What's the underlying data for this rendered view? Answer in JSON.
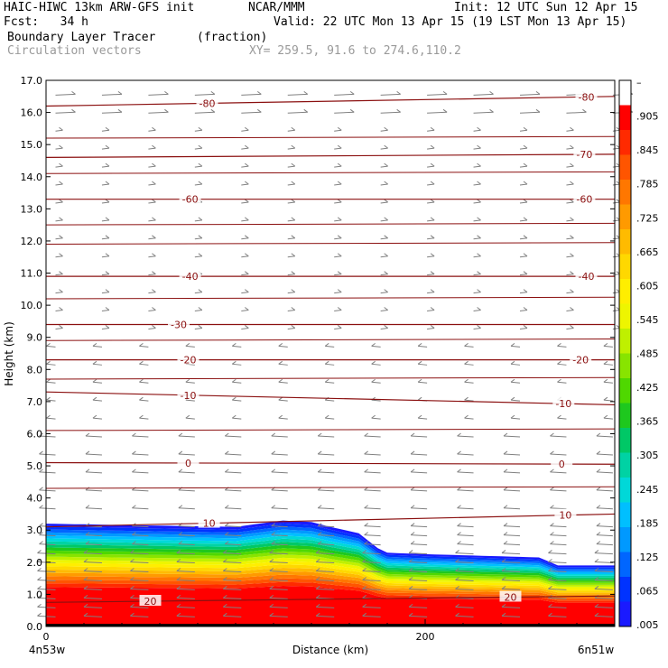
{
  "header": {
    "model": "HAIC-HIWC 13km ARW-GFS init",
    "org": "NCAR/MMM",
    "init": "Init: 12 UTC Sun 12 Apr 15",
    "fcst": "Fcst:   34 h",
    "valid": "Valid: 22 UTC Mon 13 Apr 15 (19 LST Mon 13 Apr 15)",
    "field": "Boundary Layer Tracer",
    "units": "(fraction)",
    "vectors": "Circulation vectors",
    "xy": "XY= 259.5, 91.6 to 274.6,110.2"
  },
  "colors": {
    "contour": "#8b1010",
    "vector": "#808080",
    "scale": [
      "#ffffff",
      "#ff0000",
      "#ff2a00",
      "#ff5500",
      "#ff7700",
      "#ff9a00",
      "#ffbb00",
      "#ffd800",
      "#ffee00",
      "#eef500",
      "#bff000",
      "#88e400",
      "#4fd800",
      "#1ec81e",
      "#00c866",
      "#00d2a4",
      "#00d8d8",
      "#00bfff",
      "#0099ff",
      "#0066ff",
      "#0033ff",
      "#1a1aff"
    ]
  },
  "chart_data": {
    "type": "cross-section",
    "title": "Boundary Layer Tracer",
    "xlabel": "Distance (km)",
    "ylabel": "Height (km)",
    "xlim": [
      0,
      300
    ],
    "ylim": [
      0,
      17
    ],
    "x_ticks": [
      {
        "value": 0,
        "label": "0"
      },
      {
        "value": 200,
        "label": "200"
      }
    ],
    "x_endpoints": {
      "left": "4n53w",
      "right": "6n51w"
    },
    "y_ticks": [
      {
        "value": 0,
        "label": "0.0"
      },
      {
        "value": 1,
        "label": "1.0"
      },
      {
        "value": 2,
        "label": "2.0"
      },
      {
        "value": 3,
        "label": "3.0"
      },
      {
        "value": 4,
        "label": "4.0"
      },
      {
        "value": 5,
        "label": "5.0"
      },
      {
        "value": 6,
        "label": "6.0"
      },
      {
        "value": 7,
        "label": "7.0"
      },
      {
        "value": 8,
        "label": "8.0"
      },
      {
        "value": 9,
        "label": "9.0"
      },
      {
        "value": 10,
        "label": "10.0"
      },
      {
        "value": 11,
        "label": "11.0"
      },
      {
        "value": 12,
        "label": "12.0"
      },
      {
        "value": 13,
        "label": "13.0"
      },
      {
        "value": 14,
        "label": "14.0"
      },
      {
        "value": 15,
        "label": "15.0"
      },
      {
        "value": 16,
        "label": "16.0"
      },
      {
        "value": 17,
        "label": "17.0"
      }
    ],
    "colorbar_labels": [
      "–",
      ".905",
      ".845",
      ".785",
      ".725",
      ".665",
      ".605",
      ".545",
      ".485",
      ".425",
      ".365",
      ".305",
      ".245",
      ".185",
      ".125",
      ".065",
      ".005"
    ],
    "tracer_top_km": [
      {
        "x": 0,
        "y": 3.2
      },
      {
        "x": 50,
        "y": 3.15
      },
      {
        "x": 100,
        "y": 3.1
      },
      {
        "x": 125,
        "y": 3.3
      },
      {
        "x": 140,
        "y": 3.25
      },
      {
        "x": 150,
        "y": 3.1
      },
      {
        "x": 165,
        "y": 2.9
      },
      {
        "x": 178,
        "y": 2.3
      },
      {
        "x": 200,
        "y": 2.25
      },
      {
        "x": 260,
        "y": 2.15
      },
      {
        "x": 270,
        "y": 1.9
      },
      {
        "x": 300,
        "y": 1.9
      }
    ],
    "temperature_contours": [
      {
        "label": "-80",
        "y_left": 16.2,
        "y_right": 16.5,
        "label_xs": [
          85,
          285
        ]
      },
      {
        "label": "-70",
        "y_left": 14.6,
        "y_right": 14.7,
        "label_xs": [
          284
        ]
      },
      {
        "label": "-60",
        "y_left": 13.3,
        "y_right": 13.3,
        "label_xs": [
          76,
          284
        ]
      },
      {
        "label": "-40",
        "y_left": 10.9,
        "y_right": 10.9,
        "label_xs": [
          76,
          285
        ]
      },
      {
        "label": "-30",
        "y_left": 9.4,
        "y_right": 9.4,
        "label_xs": [
          70
        ]
      },
      {
        "label": "-20",
        "y_left": 8.3,
        "y_right": 8.3,
        "label_xs": [
          75,
          282
        ]
      },
      {
        "label": "-10",
        "y_left": 7.3,
        "y_right": 6.9,
        "label_xs": [
          75,
          273
        ]
      },
      {
        "label": "0",
        "y_left": 5.1,
        "y_right": 5.05,
        "label_xs": [
          75,
          272
        ]
      },
      {
        "label": "10",
        "y_left": 3.1,
        "y_right": 3.5,
        "label_xs": [
          86,
          274
        ]
      },
      {
        "label": "20",
        "y_left": 0.75,
        "y_right": 0.95,
        "label_xs": [
          55,
          245
        ]
      }
    ],
    "other_contour_levels_km": [
      15.2,
      14.1,
      12.5,
      11.9,
      10.2,
      8.9,
      7.7,
      6.1,
      4.3
    ]
  }
}
